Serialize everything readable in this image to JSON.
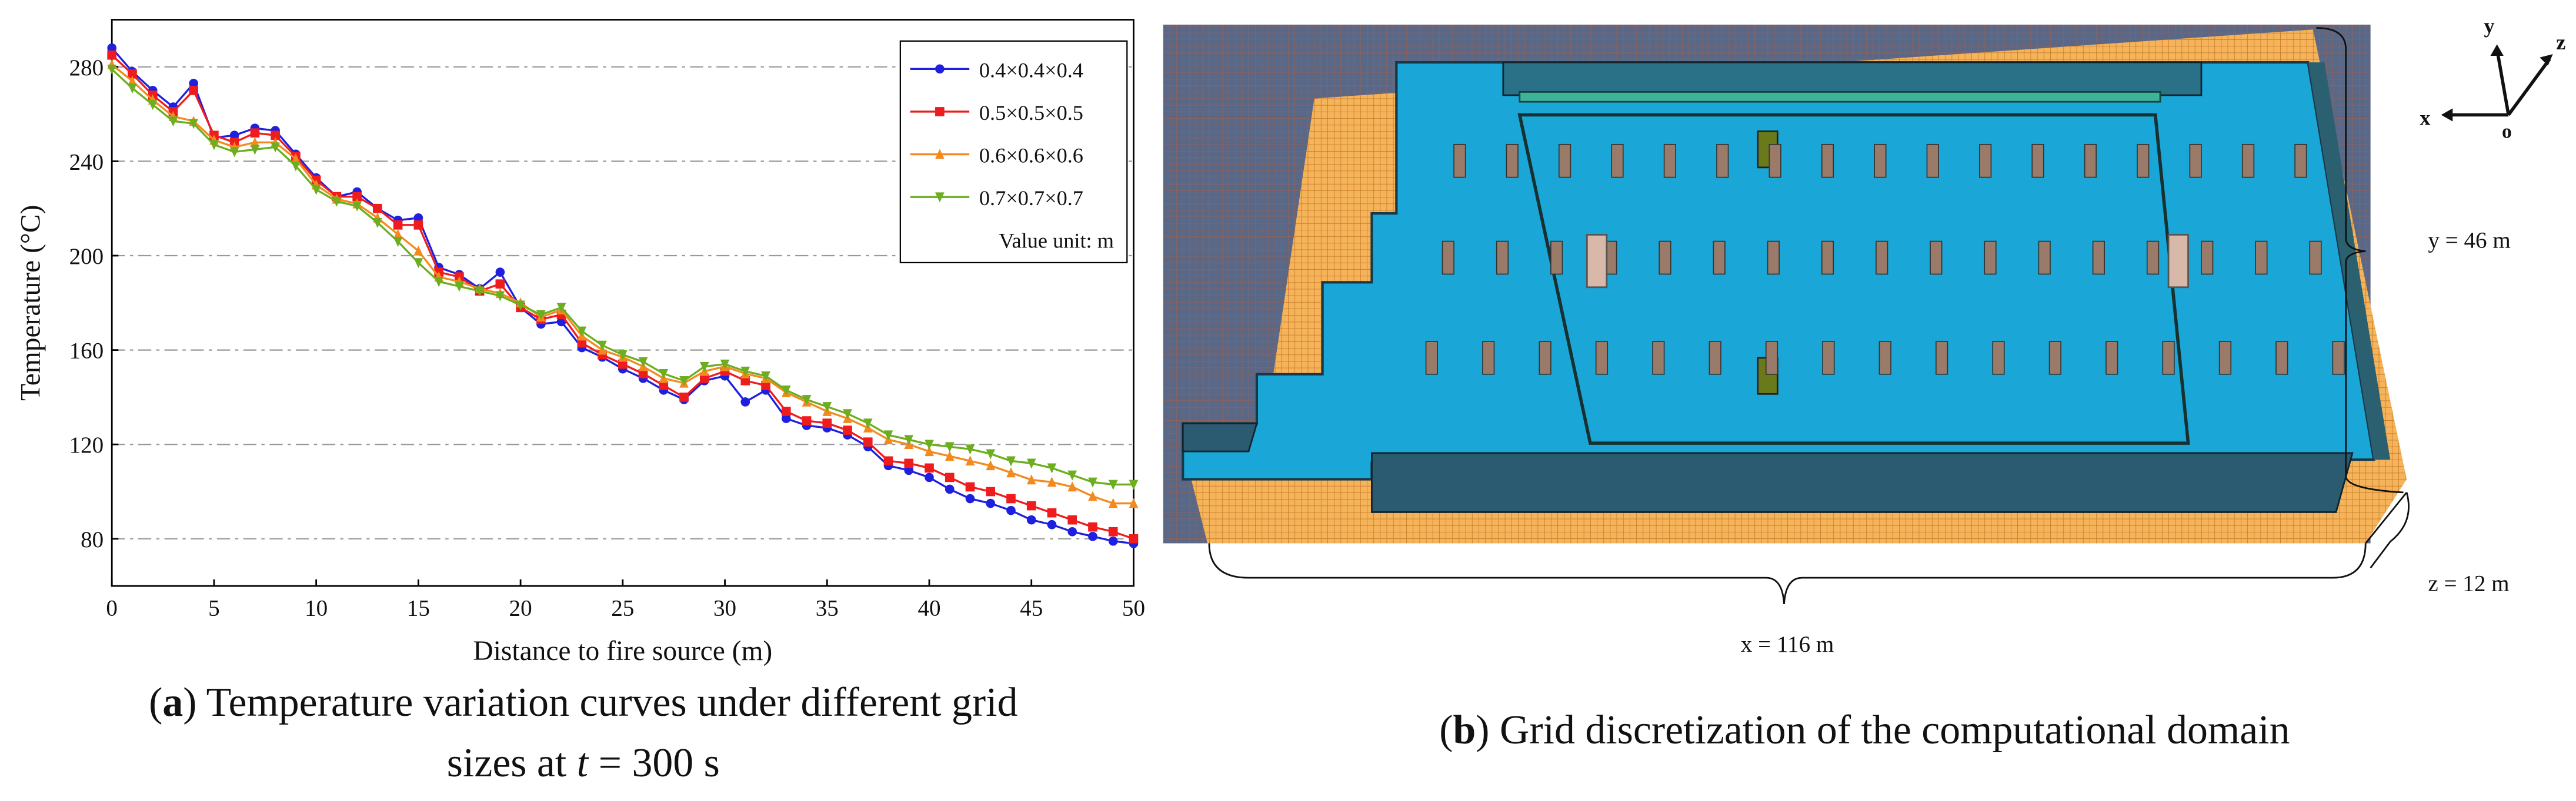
{
  "chart_data": {
    "type": "line",
    "x_label": "Distance to fire source (m)",
    "y_label": "Temperature (°C)",
    "x": [
      0,
      1,
      2,
      3,
      4,
      5,
      6,
      7,
      8,
      9,
      10,
      11,
      12,
      13,
      14,
      15,
      16,
      17,
      18,
      19,
      20,
      21,
      22,
      23,
      24,
      25,
      26,
      27,
      28,
      29,
      30,
      31,
      32,
      33,
      34,
      35,
      36,
      37,
      38,
      39,
      40,
      41,
      42,
      43,
      44,
      45,
      46,
      47,
      48,
      49,
      50
    ],
    "xlim": [
      0,
      50
    ],
    "xticks": [
      0,
      5,
      10,
      15,
      20,
      25,
      30,
      35,
      40,
      45,
      50
    ],
    "ylim": [
      60,
      300
    ],
    "yticks": [
      80,
      120,
      160,
      200,
      240,
      280
    ],
    "grid": true,
    "legend": "upper right",
    "legend_note": "Value unit: m",
    "series": [
      {
        "name": "0.4×0.4×0.4",
        "color": "#1f1fe0",
        "marker": "circle",
        "values": [
          288,
          278,
          270,
          263,
          273,
          250,
          251,
          254,
          253,
          243,
          233,
          225,
          227,
          220,
          215,
          216,
          195,
          192,
          186,
          193,
          178,
          171,
          172,
          161,
          157,
          152,
          148,
          143,
          139,
          147,
          149,
          138,
          143,
          131,
          128,
          127,
          124,
          119,
          111,
          109,
          106,
          101,
          97,
          95,
          92,
          88,
          86,
          83,
          81,
          79,
          78
        ]
      },
      {
        "name": "0.5×0.5×0.5",
        "color": "#ee1c1c",
        "marker": "square",
        "values": [
          285,
          277,
          268,
          261,
          270,
          251,
          248,
          252,
          251,
          242,
          232,
          225,
          225,
          220,
          213,
          213,
          193,
          191,
          185,
          188,
          178,
          173,
          175,
          163,
          158,
          154,
          150,
          145,
          140,
          148,
          151,
          147,
          145,
          134,
          130,
          129,
          126,
          121,
          113,
          112,
          110,
          106,
          102,
          100,
          97,
          94,
          91,
          88,
          85,
          83,
          80
        ]
      },
      {
        "name": "0.6×0.6×0.6",
        "color": "#f28a1e",
        "marker": "triangle-up",
        "values": [
          281,
          274,
          266,
          259,
          257,
          249,
          246,
          248,
          248,
          241,
          230,
          224,
          222,
          216,
          209,
          202,
          191,
          189,
          186,
          184,
          180,
          174,
          177,
          166,
          160,
          157,
          153,
          148,
          146,
          151,
          153,
          150,
          148,
          142,
          138,
          134,
          131,
          127,
          122,
          120,
          117,
          115,
          113,
          111,
          108,
          105,
          104,
          102,
          98,
          95,
          95
        ]
      },
      {
        "name": "0.7×0.7×0.7",
        "color": "#6cae1f",
        "marker": "triangle-down",
        "values": [
          279,
          271,
          264,
          257,
          256,
          247,
          244,
          245,
          246,
          238,
          228,
          223,
          221,
          214,
          206,
          197,
          189,
          187,
          185,
          183,
          179,
          175,
          178,
          168,
          162,
          158,
          155,
          150,
          147,
          153,
          154,
          151,
          149,
          143,
          139,
          136,
          133,
          129,
          124,
          122,
          120,
          119,
          118,
          116,
          113,
          112,
          110,
          107,
          104,
          103,
          103
        ]
      }
    ]
  },
  "caption_a": {
    "line1": [
      "(",
      "a",
      ") Temperature variation curves under different grid"
    ],
    "line2": [
      "sizes at ",
      "t",
      " = 300 s"
    ]
  },
  "caption_b": [
    "(",
    "b",
    ") Grid discretization of the computational domain"
  ],
  "diagram": {
    "dims": {
      "y": "y = 46 m",
      "z": "z = 12 m",
      "x": "x = 116 m"
    },
    "axes": {
      "x": "x",
      "y": "y",
      "z": "z",
      "o": "o"
    }
  }
}
